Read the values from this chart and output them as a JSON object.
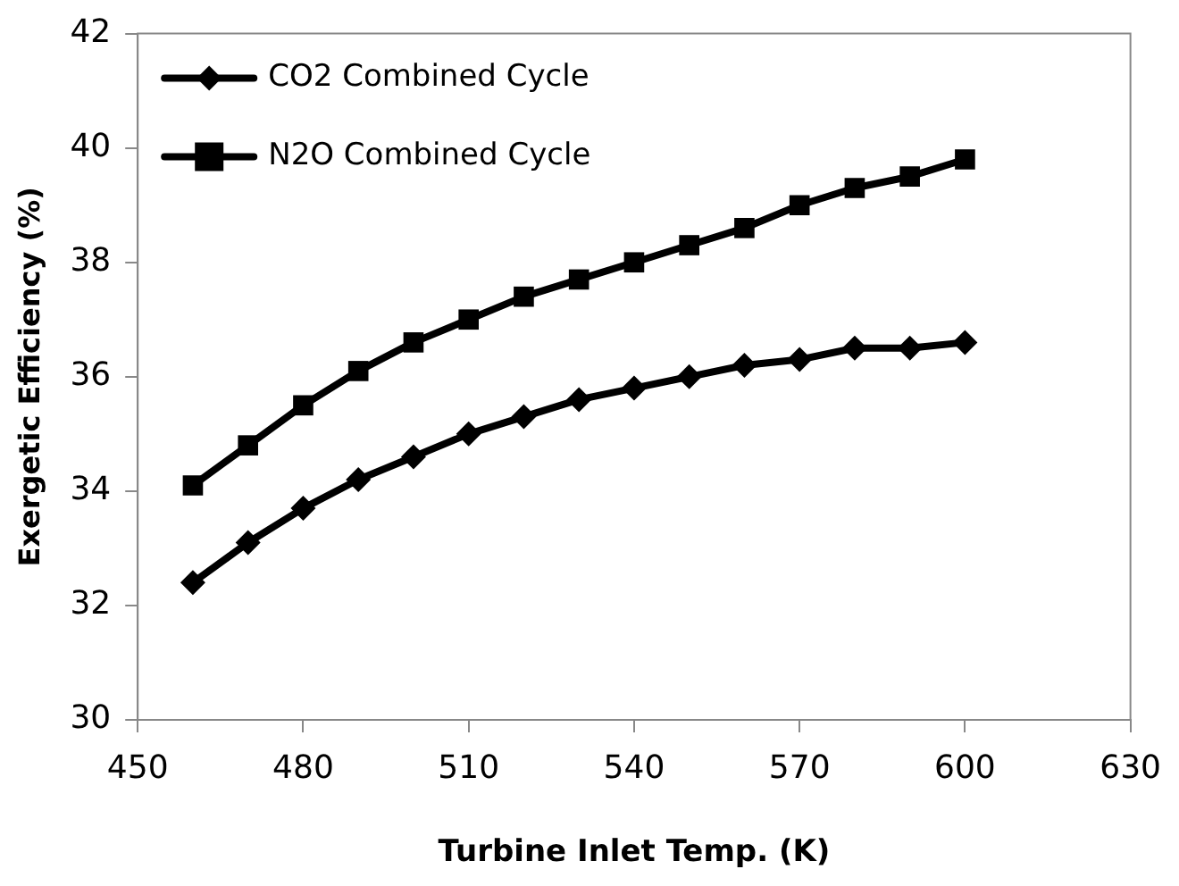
{
  "chart_data": {
    "type": "line",
    "xlabel": "Turbine Inlet Temp. (K)",
    "ylabel": "Exergetic Efficiency (%)",
    "x": [
      460,
      470,
      480,
      490,
      500,
      510,
      520,
      530,
      540,
      550,
      560,
      570,
      580,
      590,
      600
    ],
    "series": [
      {
        "name": "CO2 Combined Cycle",
        "color": "#000000",
        "marker": "diamond",
        "values": [
          32.4,
          33.1,
          33.7,
          34.2,
          34.6,
          35.0,
          35.3,
          35.6,
          35.8,
          36.0,
          36.2,
          36.3,
          36.5,
          36.5,
          36.6
        ]
      },
      {
        "name": "N2O Combined Cycle",
        "color": "#000000",
        "marker": "square",
        "values": [
          34.1,
          34.8,
          35.5,
          36.1,
          36.6,
          37.0,
          37.4,
          37.7,
          38.0,
          38.3,
          38.6,
          39.0,
          39.3,
          39.5,
          39.8
        ]
      }
    ],
    "xlim": [
      450,
      630
    ],
    "xticks": [
      450,
      480,
      510,
      540,
      570,
      600,
      630
    ],
    "ylim": [
      30,
      42
    ],
    "yticks": [
      30,
      32,
      34,
      36,
      38,
      40,
      42
    ],
    "grid": false,
    "legend": "top left",
    "line_style": "solid"
  }
}
